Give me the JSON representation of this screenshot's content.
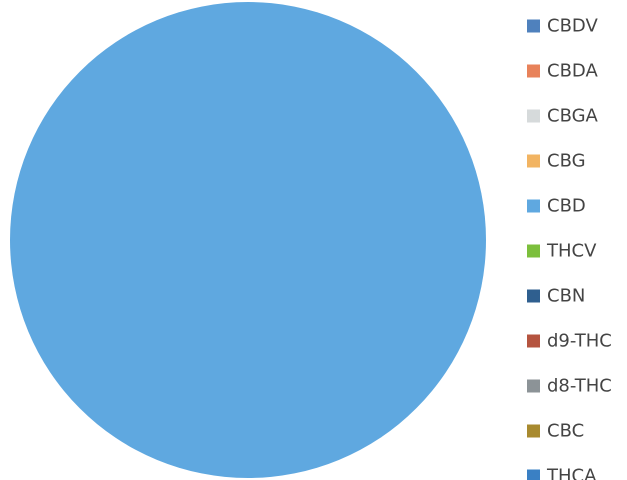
{
  "chart_data": {
    "type": "pie",
    "title": "",
    "categories": [
      "CBDV",
      "CBDA",
      "CBGA",
      "CBG",
      "CBD",
      "THCV",
      "CBN",
      "d9-THC",
      "d8-THC",
      "CBC",
      "THCA"
    ],
    "values": [
      0,
      0,
      0,
      0,
      100,
      0,
      0,
      0,
      0,
      0,
      0
    ],
    "colors": [
      "#4f81bd",
      "#e8825a",
      "#d6dadb",
      "#f2b462",
      "#5fa8e0",
      "#7cbf3c",
      "#2f5f8f",
      "#b5543f",
      "#8c9397",
      "#a88a2f",
      "#3a80c4"
    ],
    "legend_position": "right"
  }
}
